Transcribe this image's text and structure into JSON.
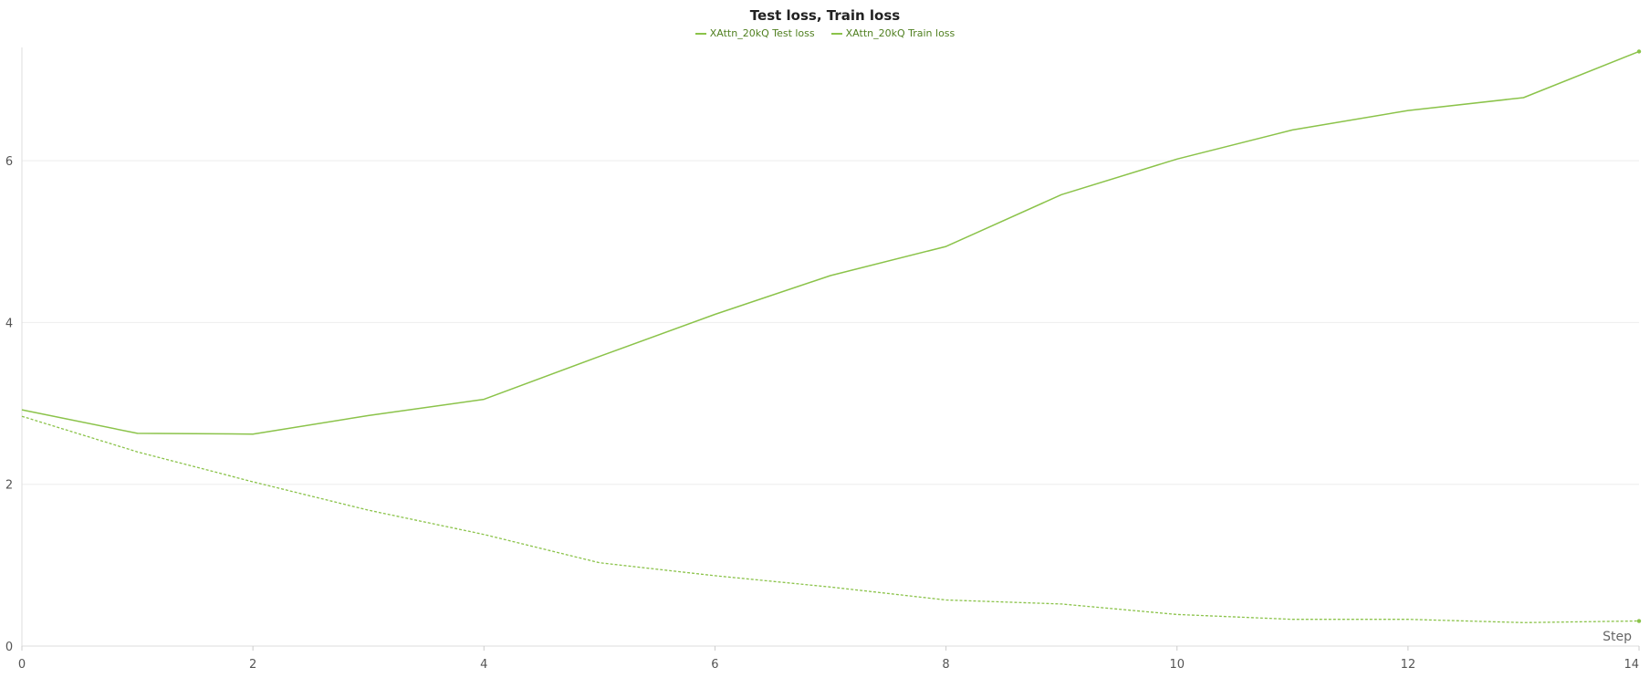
{
  "chart_data": {
    "type": "line",
    "title": "Test loss, Train loss",
    "xlabel": "Step",
    "ylabel": "",
    "xlim": [
      0,
      14
    ],
    "ylim": [
      0,
      7.4
    ],
    "xticks": [
      0,
      2,
      4,
      6,
      8,
      10,
      12,
      14
    ],
    "yticks": [
      0,
      2,
      4,
      6
    ],
    "grid": true,
    "legend_position": "top-center",
    "x": [
      0,
      1,
      2,
      3,
      4,
      5,
      6,
      7,
      8,
      9,
      10,
      11,
      12,
      13,
      14
    ],
    "series": [
      {
        "name": "XAttn_20kQ Test loss",
        "style": "solid",
        "color": "#8bc34a",
        "values": [
          2.92,
          2.63,
          2.62,
          2.85,
          3.05,
          3.58,
          4.1,
          4.58,
          4.94,
          5.58,
          6.02,
          6.38,
          6.62,
          6.78,
          7.35
        ]
      },
      {
        "name": "XAttn_20kQ Train loss",
        "style": "dashed",
        "color": "#8bc34a",
        "values": [
          2.84,
          2.4,
          2.03,
          1.68,
          1.38,
          1.03,
          0.87,
          0.73,
          0.57,
          0.52,
          0.39,
          0.33,
          0.33,
          0.29,
          0.31
        ]
      }
    ]
  }
}
